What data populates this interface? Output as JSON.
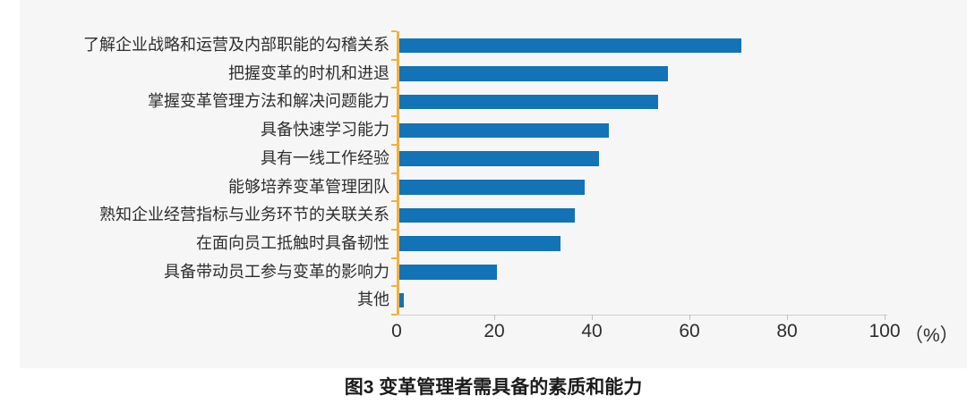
{
  "caption": "图3 变革管理者需具备的素质和能力",
  "chart_data": {
    "type": "bar",
    "orientation": "horizontal",
    "title": "图3 变革管理者需具备的素质和能力",
    "categories": [
      "了解企业战略和运营及内部职能的勾稽关系",
      "把握变革的时机和进退",
      "掌握变革管理方法和解决问题能力",
      "具备快速学习能力",
      "具有一线工作经验",
      "能够培养变革管理团队",
      "熟知企业经营指标与业务环节的关联关系",
      "在面向员工抵触时具备韧性",
      "具备带动员工参与变革的影响力",
      "其他"
    ],
    "values": [
      70,
      55,
      53,
      43,
      41,
      38,
      36,
      33,
      20,
      1
    ],
    "x_ticks": [
      0,
      20,
      40,
      60,
      80,
      100
    ],
    "x_unit_label": "（%）",
    "xlim": [
      0,
      100
    ],
    "grid": false,
    "legend": false,
    "colors": {
      "bar": "#1273b6",
      "y_axis": "#f0b13e",
      "x_axis_line": "#cfcfcf",
      "x_tick": "#bfbfbf",
      "panel_bg": "#f6f6f6",
      "label_text": "#2d2d2d",
      "caption_text": "#1c1c1c"
    }
  }
}
